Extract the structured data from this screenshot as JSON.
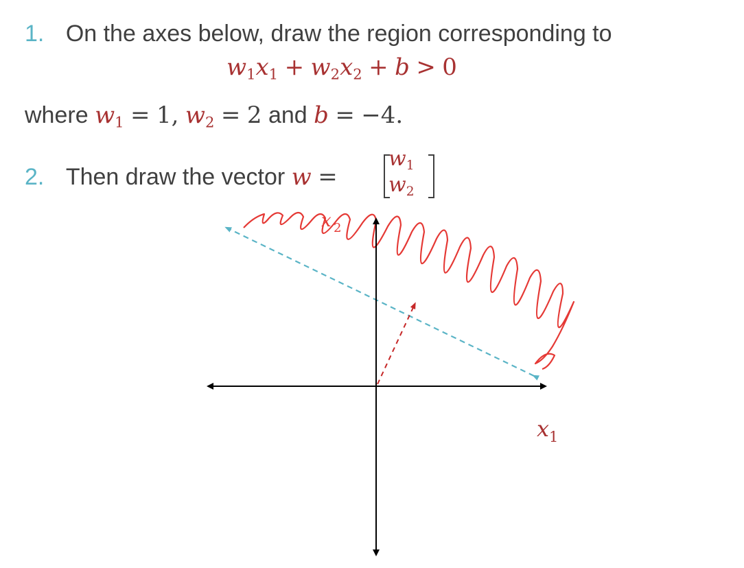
{
  "q1": {
    "number": "1.",
    "text": "On the axes below, draw the region corresponding to",
    "inequality": {
      "w1": "w",
      "w1_sub": "1",
      "x1": "x",
      "x1_sub": "1",
      "plus1": "+",
      "w2": "w",
      "w2_sub": "2",
      "x2": "x",
      "x2_sub": "2",
      "plus2": "+",
      "b": "b",
      "gt": ">",
      "zero": "0"
    }
  },
  "given": {
    "prefix": "where",
    "w1": "w",
    "w1_sub": "1",
    "eq1": "=",
    "w1_val": "1,",
    "w2": "w",
    "w2_sub": "2",
    "eq2": "=",
    "w2_val": "2",
    "and": "and",
    "b": "b",
    "eq3": "=",
    "b_val": "−4."
  },
  "q2": {
    "number": "2.",
    "text": "Then draw the vector",
    "w": "w",
    "eq": "=",
    "m_top": "w",
    "m_top_sub": "1",
    "m_bottom": "w",
    "m_bottom_sub": "2"
  },
  "axes": {
    "x_label": "x",
    "x_label_sub": "1",
    "y_label_handwritten": "x",
    "y_label_handwritten_sub": "2"
  },
  "colors": {
    "number": "#5ab4c6",
    "math": "#a83232",
    "scribble": "#e53935",
    "dashed": "#5ab4c6",
    "arrow": "#c62828",
    "axis": "#000000"
  }
}
